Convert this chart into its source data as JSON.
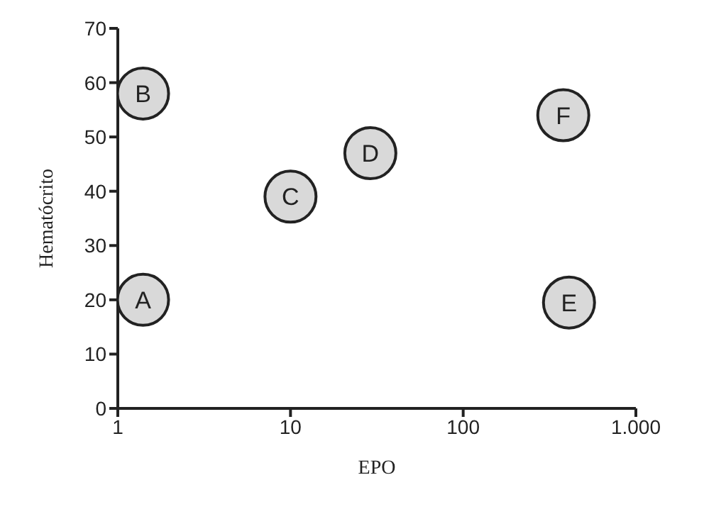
{
  "chart_data": {
    "type": "scatter",
    "xlabel": "EPO",
    "ylabel": "Hematócrito",
    "x": [
      1.4,
      1.4,
      10,
      29,
      410,
      380
    ],
    "values": [
      20,
      58,
      39,
      47,
      19.5,
      54
    ],
    "color": "#d9d9d9",
    "marker": "circle",
    "log": "x",
    "xlim": [
      1,
      1000
    ],
    "xticks": [
      1,
      10,
      100,
      {
        "value": 1000,
        "label": "1.000"
      }
    ],
    "ylim": [
      0,
      70
    ],
    "yticks": [
      0,
      10,
      20,
      30,
      40,
      50,
      60,
      70
    ],
    "grid": false,
    "legend": false,
    "annotations": [
      {
        "text": "A",
        "x": 1.4,
        "y": 20
      },
      {
        "text": "B",
        "x": 1.4,
        "y": 58
      },
      {
        "text": "C",
        "x": 10,
        "y": 39
      },
      {
        "text": "D",
        "x": 29,
        "y": 47
      },
      {
        "text": "E",
        "x": 410,
        "y": 19.5
      },
      {
        "text": "F",
        "x": 380,
        "y": 54
      }
    ]
  }
}
